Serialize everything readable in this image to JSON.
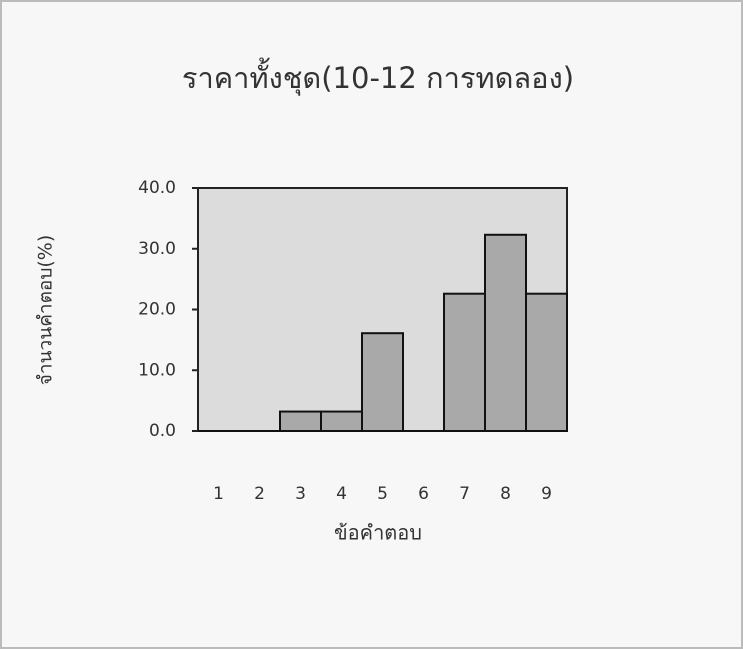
{
  "chart_data": {
    "type": "bar",
    "title": "ราคาทั้งชุด(10-12 การทดลอง)",
    "x_label": "ข้อคำตอบ",
    "y_label": "จำนวนคำตอบ(%)",
    "categories": [
      "1",
      "2",
      "3",
      "4",
      "5",
      "6",
      "7",
      "8",
      "9"
    ],
    "values": [
      0,
      0,
      3.2,
      3.2,
      16.1,
      0,
      22.6,
      32.3,
      22.6
    ],
    "color": "#a9a9a9",
    "plot_background": "#dcdcdc",
    "ylim": [
      0,
      40
    ],
    "yticks": [
      {
        "value": 0,
        "label": "0.0"
      },
      {
        "value": 10,
        "label": "10.0"
      },
      {
        "value": 20,
        "label": "20.0"
      },
      {
        "value": 30,
        "label": "30.0"
      },
      {
        "value": 40,
        "label": "40.0"
      }
    ],
    "grid": false
  }
}
